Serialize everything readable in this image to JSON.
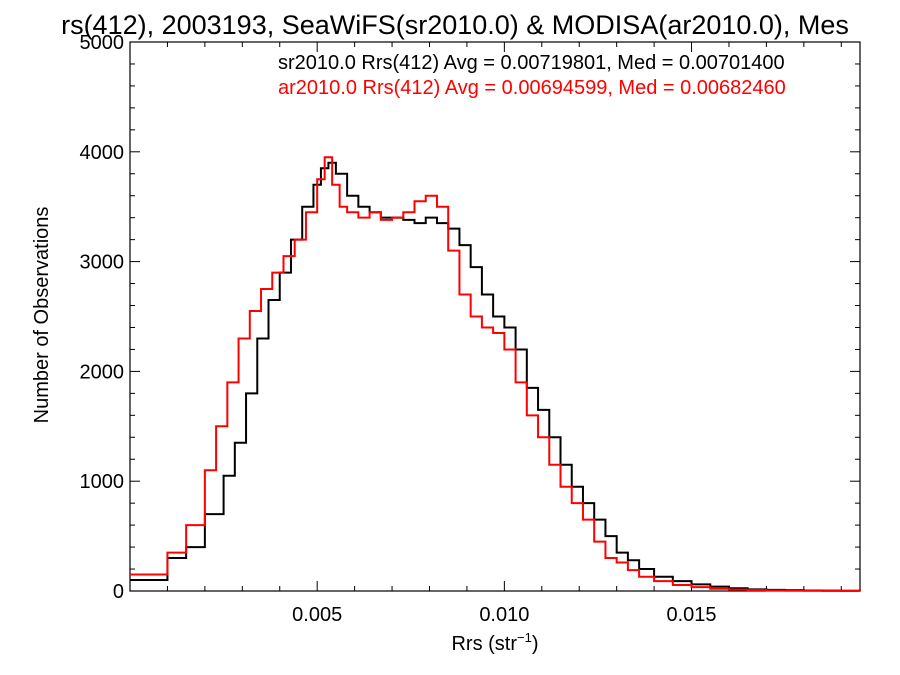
{
  "chart_data": {
    "type": "line",
    "title": "rs(412), 2003193, SeaWiFS(sr2010.0) & MODISA(ar2010.0), Mes",
    "xlabel": "Rrs (str",
    "xlabel_sup": "−1",
    "xlabel_close": ")",
    "ylabel": "Number of Observations",
    "xlim": [
      0.0,
      0.0195
    ],
    "ylim": [
      0,
      5000
    ],
    "xticks": [
      0.005,
      0.01,
      0.015
    ],
    "xtick_labels": [
      "0.005",
      "0.010",
      "0.015"
    ],
    "yticks": [
      0,
      1000,
      2000,
      3000,
      4000,
      5000
    ],
    "ytick_labels": [
      "0",
      "1000",
      "2000",
      "3000",
      "4000",
      "5000"
    ],
    "grid": false,
    "legend_placement": "top-right",
    "annotations": [
      {
        "text": "sr2010.0 Rrs(412) Avg = 0.00719801, Med = 0.00701400",
        "color": "#000000"
      },
      {
        "text": "ar2010.0 Rrs(412) Avg = 0.00694599, Med = 0.00682460",
        "color": "#ff0000"
      }
    ],
    "series": [
      {
        "color": "#000000",
        "x": [
          0.0,
          0.001,
          0.0015,
          0.002,
          0.0025,
          0.0028,
          0.0031,
          0.0034,
          0.0037,
          0.004,
          0.0043,
          0.0046,
          0.0049,
          0.0051,
          0.0053,
          0.0055,
          0.0058,
          0.0061,
          0.0064,
          0.0067,
          0.007,
          0.0073,
          0.0076,
          0.0079,
          0.0082,
          0.0085,
          0.0088,
          0.0091,
          0.0094,
          0.0097,
          0.01,
          0.0103,
          0.0106,
          0.0109,
          0.0112,
          0.0115,
          0.0118,
          0.0121,
          0.0124,
          0.0127,
          0.013,
          0.0133,
          0.0136,
          0.014,
          0.0145,
          0.015,
          0.0155,
          0.016,
          0.0165,
          0.017,
          0.0175,
          0.018,
          0.0185,
          0.019,
          0.0195
        ],
        "values": [
          100,
          300,
          400,
          700,
          1050,
          1350,
          1800,
          2300,
          2650,
          2900,
          3200,
          3500,
          3700,
          3850,
          3900,
          3800,
          3600,
          3500,
          3450,
          3400,
          3400,
          3380,
          3350,
          3400,
          3350,
          3300,
          3150,
          2950,
          2700,
          2500,
          2400,
          2200,
          1850,
          1650,
          1400,
          1150,
          950,
          800,
          650,
          500,
          350,
          280,
          200,
          130,
          90,
          60,
          40,
          25,
          15,
          10,
          8,
          5,
          3,
          2,
          0
        ]
      },
      {
        "color": "#ff0000",
        "x": [
          0.0,
          0.001,
          0.0015,
          0.002,
          0.0023,
          0.0026,
          0.0029,
          0.0032,
          0.0035,
          0.0038,
          0.0041,
          0.0044,
          0.0047,
          0.005,
          0.0052,
          0.0054,
          0.0056,
          0.0058,
          0.0061,
          0.0064,
          0.0067,
          0.007,
          0.0073,
          0.0076,
          0.0079,
          0.0082,
          0.0085,
          0.0088,
          0.0091,
          0.0094,
          0.0097,
          0.01,
          0.0103,
          0.0106,
          0.0109,
          0.0112,
          0.0115,
          0.0118,
          0.0121,
          0.0124,
          0.0127,
          0.013,
          0.0133,
          0.0136,
          0.014,
          0.0145,
          0.015,
          0.0155,
          0.016,
          0.0165,
          0.017,
          0.0175,
          0.018,
          0.0185,
          0.019,
          0.0195
        ],
        "values": [
          150,
          350,
          600,
          1100,
          1500,
          1900,
          2300,
          2550,
          2750,
          2900,
          3050,
          3200,
          3450,
          3750,
          3950,
          3700,
          3500,
          3450,
          3400,
          3450,
          3380,
          3400,
          3450,
          3550,
          3600,
          3500,
          3100,
          2700,
          2500,
          2400,
          2350,
          2200,
          1900,
          1600,
          1400,
          1150,
          950,
          800,
          650,
          450,
          300,
          260,
          190,
          130,
          90,
          55,
          35,
          20,
          12,
          8,
          5,
          3,
          2,
          1,
          1,
          0
        ]
      }
    ]
  }
}
